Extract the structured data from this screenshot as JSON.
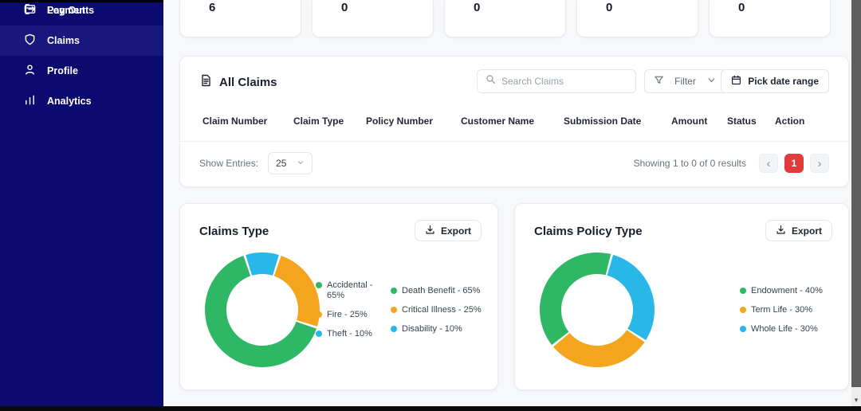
{
  "sidebar": {
    "items": [
      {
        "label": "Payments"
      },
      {
        "label": "Claims"
      },
      {
        "label": "Profile"
      },
      {
        "label": "Analytics"
      }
    ],
    "logout_label": "Log Out"
  },
  "stats": [
    "6",
    "0",
    "0",
    "0",
    "0"
  ],
  "claims_panel": {
    "title": "All Claims",
    "search_placeholder": "Search Claims",
    "filter_label": "Filter",
    "date_range_label": "Pick date range",
    "headers": [
      "Claim Number",
      "Claim Type",
      "Policy Number",
      "Customer Name",
      "Submission Date",
      "Amount",
      "Status",
      "Action"
    ],
    "show_entries_label": "Show Entries:",
    "entries_value": "25",
    "results_text": "Showing 1 to 0 of 0 results",
    "prev_glyph": "‹",
    "next_glyph": "›",
    "page_number": "1"
  },
  "colors": {
    "green": "#2eb865",
    "orange": "#f2a51d",
    "blue": "#29b7e8",
    "accent_red": "#e23b3c",
    "sidebar_navy": "#0b0b6f"
  },
  "chart_data": [
    {
      "type": "pie",
      "donut": true,
      "title": "Claims Type",
      "export_label": "Export",
      "start_angle": -18,
      "legend_position": "right",
      "segments": [
        {
          "label": "Theft",
          "value": 10,
          "color": "#29b7e8"
        },
        {
          "label": "Fire",
          "value": 25,
          "color": "#f2a51d"
        },
        {
          "label": "Accidental",
          "value": 65,
          "color": "#2eb865"
        }
      ],
      "legend_columns": [
        [
          {
            "text": "Accidental - 65%",
            "color": "#2eb865"
          },
          {
            "text": "Fire - 25%",
            "color": "#f2a51d"
          },
          {
            "text": "Theft - 10%",
            "color": "#29b7e8"
          }
        ],
        [
          {
            "text": "Death Benefit - 65%",
            "color": "#2eb865"
          },
          {
            "text": "Critical Illness - 25%",
            "color": "#f2a51d"
          },
          {
            "text": "Disability - 10%",
            "color": "#29b7e8"
          }
        ]
      ]
    },
    {
      "type": "pie",
      "donut": true,
      "title": "Claims Policy Type",
      "export_label": "Export",
      "start_angle": 15,
      "legend_position": "right",
      "segments": [
        {
          "label": "Whole Life",
          "value": 30,
          "color": "#29b7e8"
        },
        {
          "label": "Term Life",
          "value": 30,
          "color": "#f2a51d"
        },
        {
          "label": "Endowment",
          "value": 40,
          "color": "#2eb865"
        }
      ],
      "legend_columns": [
        [
          {
            "text": "Endowment - 40%",
            "color": "#2eb865"
          },
          {
            "text": "Term Life - 30%",
            "color": "#f2a51d"
          },
          {
            "text": "Whole Life - 30%",
            "color": "#29b7e8"
          }
        ]
      ]
    }
  ]
}
